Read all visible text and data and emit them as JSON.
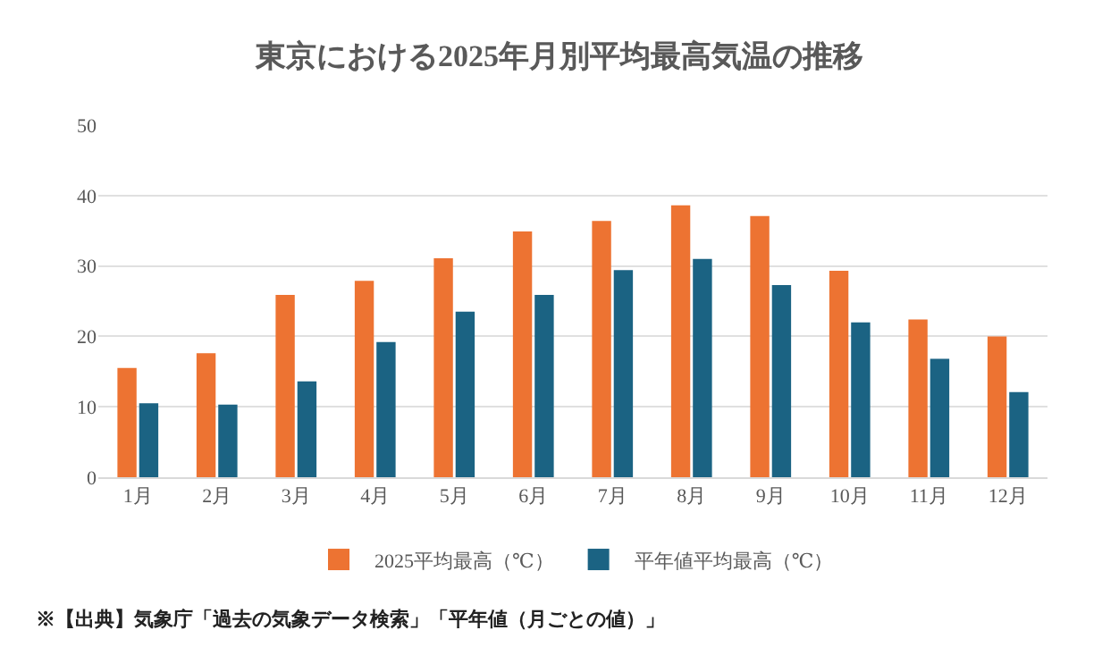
{
  "chart_data": {
    "type": "bar",
    "title": "東京における2025年月別平均最高気温の推移",
    "categories": [
      "1月",
      "2月",
      "3月",
      "4月",
      "5月",
      "6月",
      "7月",
      "8月",
      "9月",
      "10月",
      "11月",
      "12月"
    ],
    "series": [
      {
        "name": "2025平均最高（℃）",
        "color": "#ed7332",
        "values": [
          15.5,
          17.6,
          25.9,
          27.9,
          31.1,
          34.9,
          36.4,
          38.6,
          37.1,
          29.3,
          22.4,
          20.0
        ]
      },
      {
        "name": "平年値平均最高（℃）",
        "color": "#1b6383",
        "values": [
          10.5,
          10.3,
          13.6,
          19.2,
          23.5,
          25.9,
          29.4,
          31.0,
          27.3,
          22.0,
          16.8,
          12.1
        ]
      }
    ],
    "ylim": [
      0,
      50
    ],
    "yticks": [
      0,
      10,
      20,
      30,
      40,
      50
    ],
    "grid": "y",
    "legend": "bottom",
    "annotations": [
      "※【出典】気象庁「過去の気象データ検索」「平年値（月ごとの値）」"
    ]
  }
}
